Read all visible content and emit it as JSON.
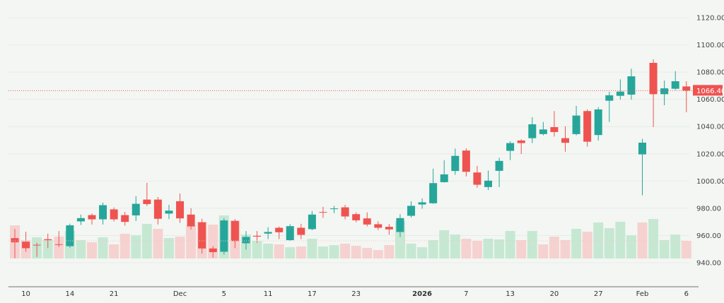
{
  "chart_data": {
    "type": "candlestick",
    "title": "",
    "ylim": [
      940,
      1120
    ],
    "y_ticks": [
      "1120.00",
      "1100.00",
      "1080.00",
      "1060.00",
      "1040.00",
      "1020.00",
      "1000.00",
      "980.00",
      "960.00",
      "940.00"
    ],
    "y_tick_values": [
      1120,
      1100,
      1080,
      1060,
      1040,
      1020,
      1000,
      980,
      960,
      940
    ],
    "x_ticks": [
      {
        "label": "10",
        "candle": 1
      },
      {
        "label": "14",
        "candle": 5
      },
      {
        "label": "21",
        "candle": 9
      },
      {
        "label": "Dec",
        "candle": 15
      },
      {
        "label": "5",
        "candle": 19
      },
      {
        "label": "11",
        "candle": 23
      },
      {
        "label": "17",
        "candle": 27
      },
      {
        "label": "23",
        "candle": 31
      },
      {
        "label": "2026",
        "candle": 37,
        "bold": true
      },
      {
        "label": "7",
        "candle": 41
      },
      {
        "label": "13",
        "candle": 45
      },
      {
        "label": "20",
        "candle": 49
      },
      {
        "label": "27",
        "candle": 53
      },
      {
        "label": "Feb",
        "candle": 57
      },
      {
        "label": "6",
        "candle": 61
      }
    ],
    "grid": true,
    "last_price": 1066.4,
    "last_price_label": "1066.40",
    "colors": {
      "up": "#26a69a",
      "down": "#ef5350",
      "volume_up": "#c6e8d3",
      "volume_down": "#f5d2d0",
      "background": "#f3f6f3"
    },
    "ohlc_format": [
      "open",
      "high",
      "low",
      "close"
    ],
    "candles": [
      [
        958.1,
        964.8,
        943.3,
        955.0
      ],
      [
        955.5,
        962.8,
        948.1,
        950.7
      ],
      [
        953.2,
        954.7,
        944.3,
        952.8
      ],
      [
        957.3,
        961.4,
        950.7,
        956.6
      ],
      [
        953.6,
        963.3,
        951.6,
        953.3
      ],
      [
        952.2,
        968.7,
        951.1,
        967.5
      ],
      [
        970.4,
        975.4,
        967.8,
        972.8
      ],
      [
        975.0,
        976.2,
        968.1,
        971.9
      ],
      [
        971.9,
        984.2,
        968.1,
        982.3
      ],
      [
        979.2,
        980.6,
        970.4,
        971.9
      ],
      [
        975.0,
        977.3,
        967.3,
        970.0
      ],
      [
        974.8,
        988.9,
        970.7,
        983.3
      ],
      [
        986.4,
        998.7,
        981.6,
        983.1
      ],
      [
        986.4,
        988.3,
        968.1,
        972.3
      ],
      [
        976.1,
        982.6,
        972.1,
        978.3
      ],
      [
        985.2,
        990.9,
        969.3,
        972.6
      ],
      [
        975.4,
        980.1,
        964.4,
        966.7
      ],
      [
        969.7,
        972.3,
        946.7,
        950.5
      ],
      [
        950.5,
        952.2,
        943.8,
        947.8
      ],
      [
        948.1,
        972.8,
        946.0,
        971.1
      ],
      [
        970.7,
        972.1,
        950.7,
        955.9
      ],
      [
        954.3,
        963.3,
        949.6,
        959.0
      ],
      [
        959.8,
        963.3,
        954.7,
        959.2
      ],
      [
        961.4,
        966.1,
        957.4,
        962.6
      ],
      [
        965.7,
        966.6,
        957.4,
        962.4
      ],
      [
        956.6,
        968.3,
        956.2,
        966.9
      ],
      [
        965.7,
        968.6,
        957.4,
        960.5
      ],
      [
        964.7,
        978.0,
        963.9,
        975.4
      ],
      [
        977.3,
        981.1,
        973.0,
        976.9
      ],
      [
        979.4,
        981.8,
        976.4,
        979.9
      ],
      [
        980.7,
        982.5,
        971.9,
        974.0
      ],
      [
        975.7,
        977.0,
        969.8,
        971.2
      ],
      [
        972.6,
        977.0,
        966.7,
        968.1
      ],
      [
        968.3,
        970.4,
        964.0,
        965.7
      ],
      [
        966.4,
        968.5,
        960.7,
        964.5
      ],
      [
        962.6,
        975.7,
        958.8,
        972.8
      ],
      [
        974.5,
        985.1,
        973.2,
        981.8
      ],
      [
        982.8,
        987.3,
        979.7,
        984.4
      ],
      [
        983.7,
        1009.1,
        983.3,
        998.5
      ],
      [
        999.2,
        1015.3,
        998.9,
        1004.9
      ],
      [
        1007.4,
        1023.9,
        1004.6,
        1018.5
      ],
      [
        1022.4,
        1024.0,
        1003.4,
        1006.8
      ],
      [
        1006.3,
        1011.1,
        995.1,
        997.3
      ],
      [
        995.6,
        1007.7,
        993.4,
        1000.3
      ],
      [
        1007.5,
        1017.2,
        995.6,
        1014.8
      ],
      [
        1022.2,
        1029.3,
        1015.4,
        1027.9
      ],
      [
        1029.8,
        1030.7,
        1019.8,
        1027.9
      ],
      [
        1031.5,
        1046.9,
        1027.9,
        1041.7
      ],
      [
        1034.5,
        1043.4,
        1033.6,
        1037.9
      ],
      [
        1039.6,
        1051.4,
        1032.7,
        1036.0
      ],
      [
        1031.5,
        1040.2,
        1021.5,
        1028.1
      ],
      [
        1034.5,
        1055.2,
        1033.6,
        1048.1
      ],
      [
        1051.4,
        1052.6,
        1025.3,
        1028.9
      ],
      [
        1033.8,
        1054.3,
        1029.8,
        1052.6
      ],
      [
        1059.0,
        1065.5,
        1043.4,
        1063.0
      ],
      [
        1062.6,
        1074.7,
        1059.8,
        1065.7
      ],
      [
        1063.5,
        1082.5,
        1059.8,
        1076.9
      ],
      [
        1019.6,
        1031.0,
        989.5,
        1028.2
      ],
      [
        1086.8,
        1089.4,
        1039.6,
        1063.8
      ],
      [
        1063.8,
        1073.8,
        1055.7,
        1068.1
      ],
      [
        1067.8,
        1080.7,
        1066.9,
        1073.3
      ],
      [
        1069.5,
        1073.3,
        1050.5,
        1066.4
      ]
    ],
    "volume_relative": [
      47,
      26,
      30,
      26,
      31,
      39,
      26,
      23,
      30,
      20,
      35,
      33,
      49,
      42,
      29,
      31,
      47,
      52,
      48,
      61,
      54,
      34,
      25,
      21,
      20,
      16,
      17,
      28,
      17,
      19,
      21,
      18,
      15,
      12,
      19,
      53,
      21,
      16,
      26,
      40,
      34,
      28,
      25,
      28,
      27,
      39,
      26,
      39,
      20,
      31,
      26,
      42,
      38,
      51,
      43,
      52,
      33,
      51,
      56,
      26,
      34,
      25
    ],
    "volume_colors": [
      "down",
      "down",
      "up",
      "up",
      "down",
      "up",
      "up",
      "down",
      "up",
      "down",
      "down",
      "up",
      "up",
      "down",
      "up",
      "down",
      "down",
      "down",
      "down",
      "up",
      "down",
      "up",
      "up",
      "up",
      "down",
      "up",
      "down",
      "up",
      "up",
      "up",
      "down",
      "down",
      "down",
      "down",
      "down",
      "up",
      "up",
      "up",
      "up",
      "up",
      "up",
      "down",
      "down",
      "up",
      "up",
      "up",
      "down",
      "up",
      "down",
      "down",
      "down",
      "up",
      "down",
      "up",
      "up",
      "up",
      "up",
      "down",
      "up",
      "up",
      "up",
      "down"
    ]
  }
}
